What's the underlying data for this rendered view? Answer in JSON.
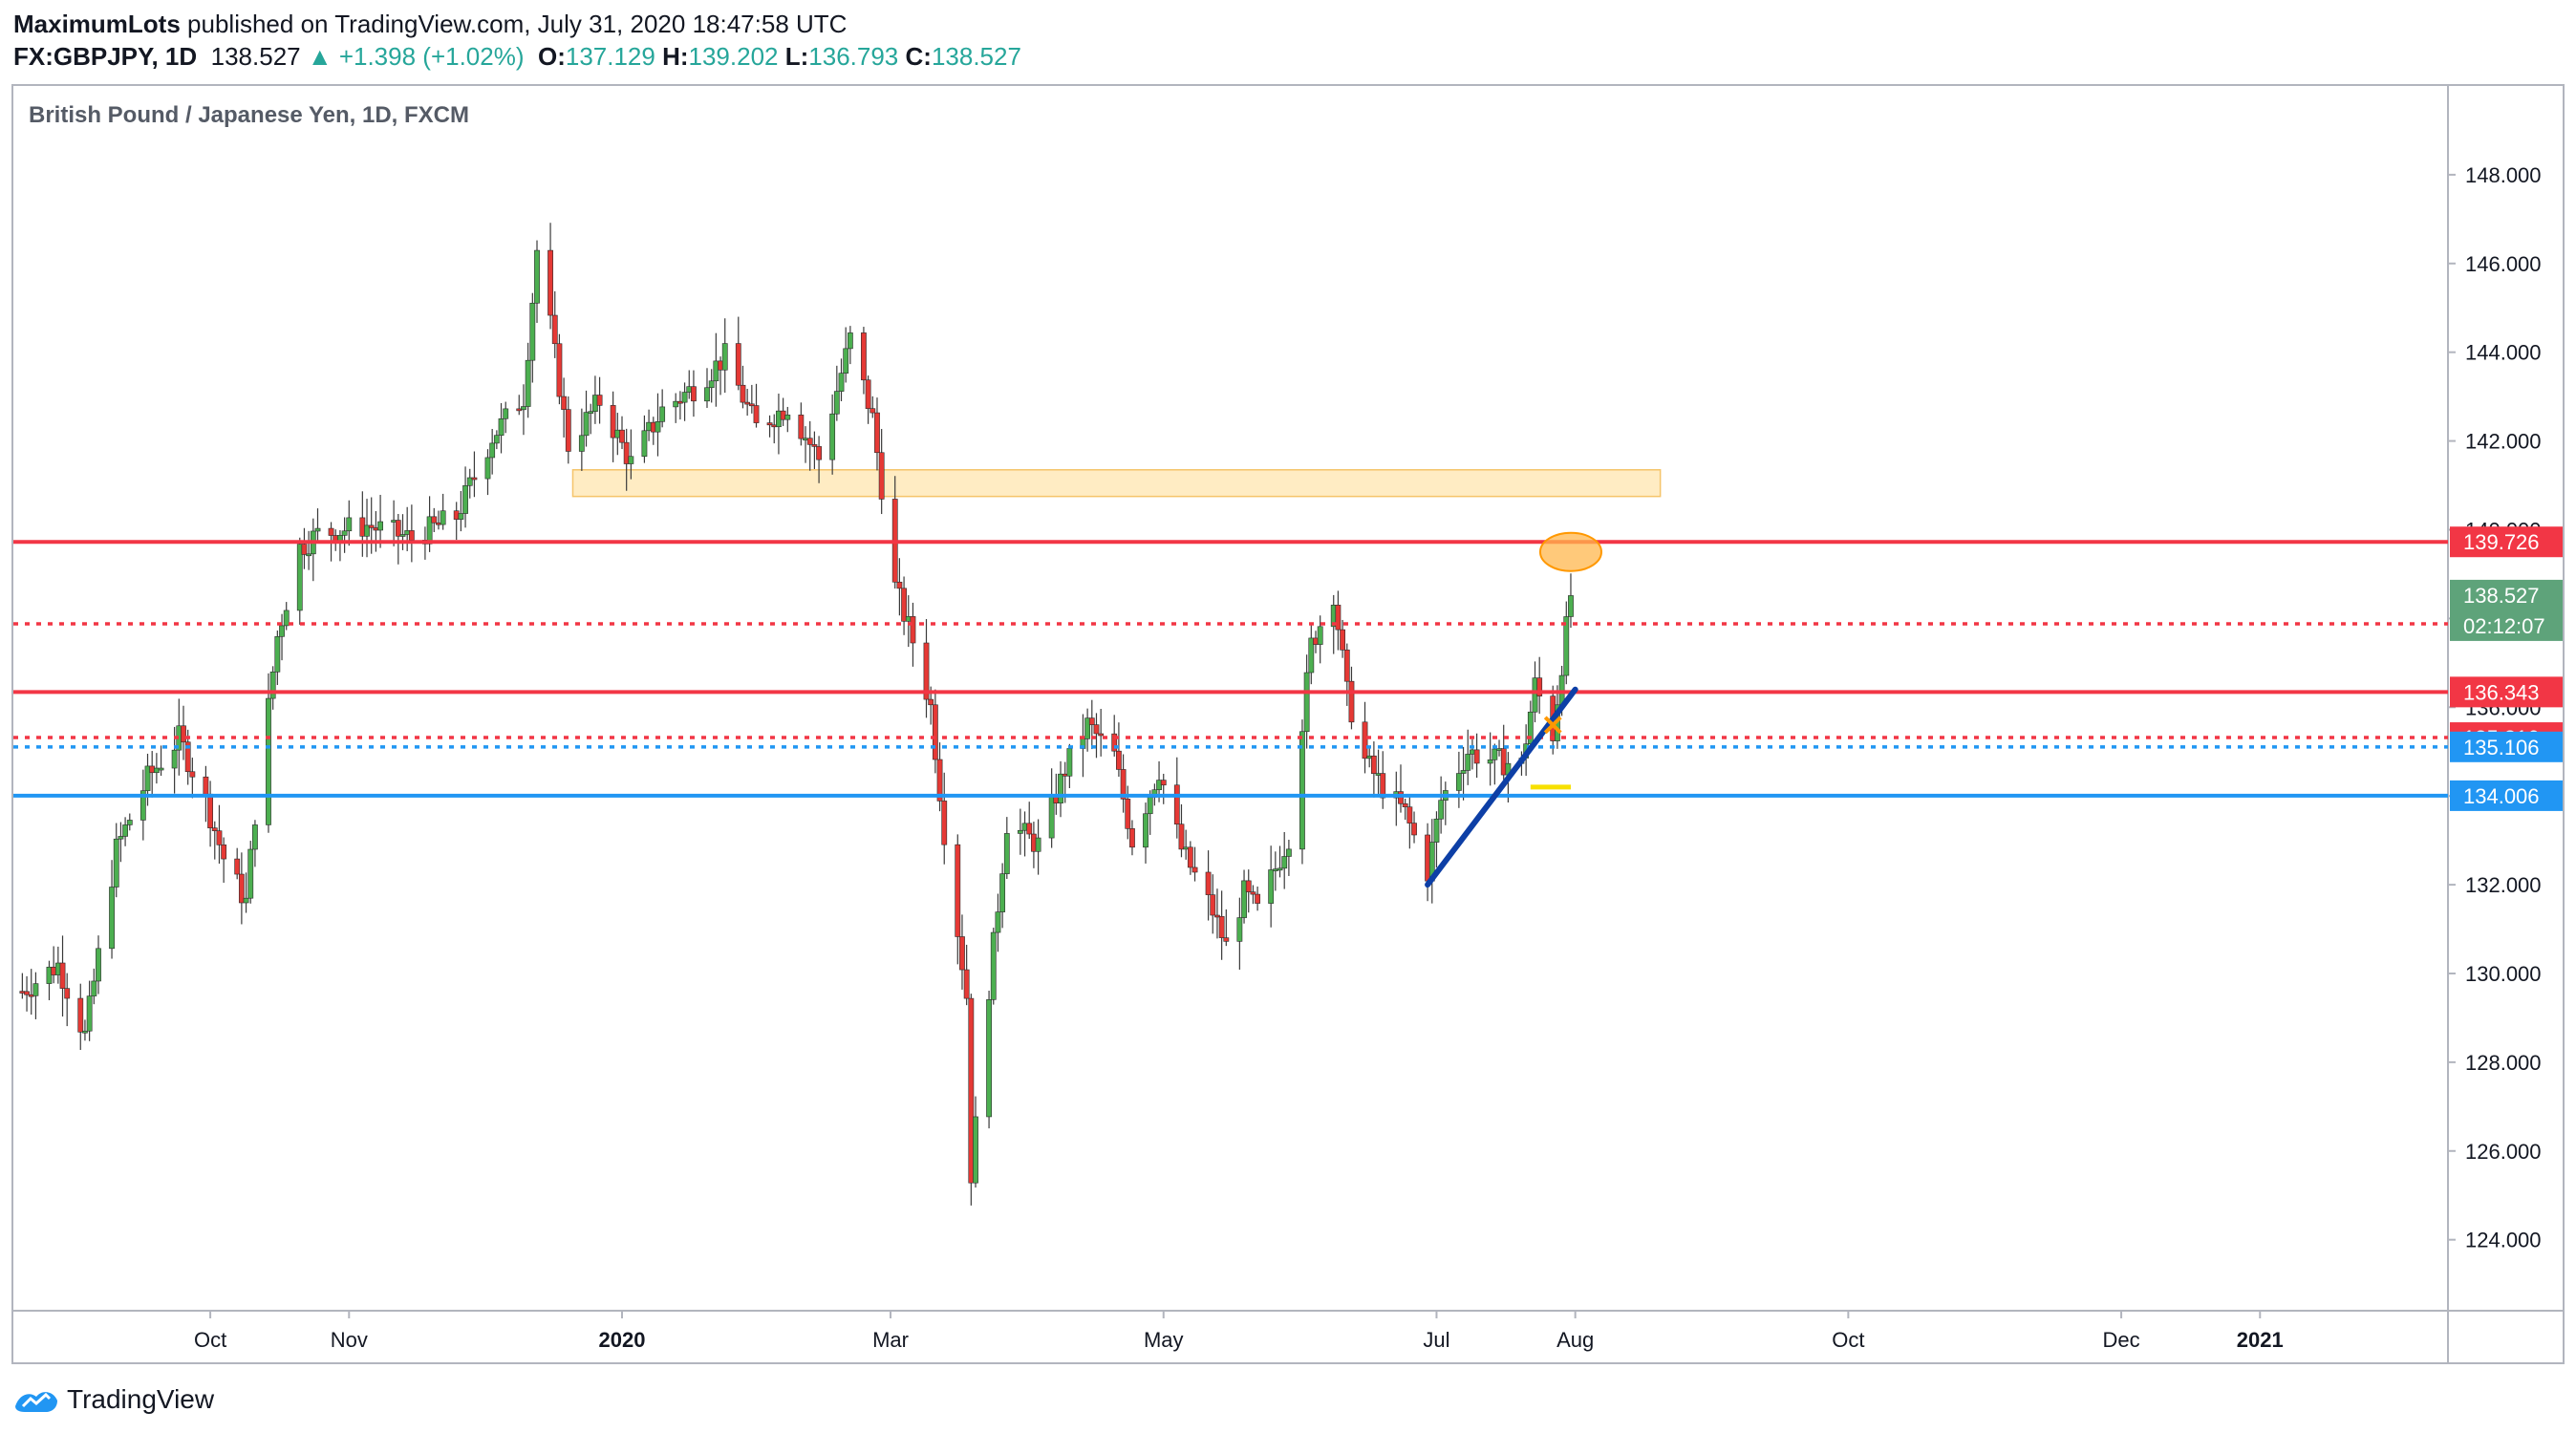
{
  "header": {
    "publisher": "MaximumLots",
    "published_text": " published on TradingView.com, July 31, 2020 18:47:58 UTC",
    "symbol": "FX:GBPJPY, 1D",
    "last": "138.527",
    "change": "+1.398 (+1.02%)",
    "open_label": "O:",
    "open": "137.129",
    "high_label": "H:",
    "high": "139.202",
    "low_label": "L:",
    "low": "136.793",
    "close_label": "C:",
    "close": "138.527"
  },
  "footer": {
    "brand": "TradingView"
  },
  "colors": {
    "up": "#26a69a",
    "down": "#ef5350",
    "candle_up_body": "#4caf50",
    "candle_down_body": "#e53935",
    "red_line": "#f23645",
    "blue_line": "#2196f3",
    "trend_line": "#0d3fa6",
    "zone": "#ffe0a3",
    "circle": "#ffb74d"
  },
  "chart_data": {
    "type": "candlestick",
    "title": "British Pound / Japanese Yen, 1D, FXCM",
    "ylim": [
      122.4,
      150.0
    ],
    "y_ticks": [
      124,
      126,
      128,
      130,
      132,
      134,
      136,
      138,
      140,
      142,
      144,
      146,
      148
    ],
    "y_tick_labels": [
      "124.000",
      "126.000",
      "128.000",
      "130.000",
      "132.000",
      "134.000",
      "136.000",
      "138.000",
      "140.000",
      "142.000",
      "144.000",
      "146.000",
      "148.000"
    ],
    "x_ticks": [
      {
        "label": "Oct",
        "date": "2019-10-01",
        "bold": false
      },
      {
        "label": "Nov",
        "date": "2019-11-01",
        "bold": false
      },
      {
        "label": "2020",
        "date": "2020-01-01",
        "bold": true
      },
      {
        "label": "Mar",
        "date": "2020-03-01",
        "bold": false
      },
      {
        "label": "May",
        "date": "2020-05-01",
        "bold": false
      },
      {
        "label": "Jul",
        "date": "2020-07-01",
        "bold": false
      },
      {
        "label": "Aug",
        "date": "2020-08-01",
        "bold": false
      },
      {
        "label": "Oct",
        "date": "2020-10-01",
        "bold": false
      },
      {
        "label": "Dec",
        "date": "2020-12-01",
        "bold": false
      },
      {
        "label": "2021",
        "date": "2021-01-01",
        "bold": true
      }
    ],
    "x_range": [
      "2019-08-18",
      "2021-02-12"
    ],
    "price_path": [
      [
        "2019-08-20",
        129.6
      ],
      [
        "2019-08-28",
        130.2
      ],
      [
        "2019-09-03",
        128.6
      ],
      [
        "2019-09-10",
        132.8
      ],
      [
        "2019-09-17",
        134.4
      ],
      [
        "2019-09-24",
        135.3
      ],
      [
        "2019-09-30",
        133.9
      ],
      [
        "2019-10-04",
        132.6
      ],
      [
        "2019-10-09",
        131.6
      ],
      [
        "2019-10-11",
        133.6
      ],
      [
        "2019-10-16",
        137.6
      ],
      [
        "2019-10-21",
        139.6
      ],
      [
        "2019-10-25",
        139.9
      ],
      [
        "2019-11-05",
        140.1
      ],
      [
        "2019-11-15",
        139.8
      ],
      [
        "2019-11-25",
        140.3
      ],
      [
        "2019-12-03",
        142.1
      ],
      [
        "2019-12-10",
        143.0
      ],
      [
        "2019-12-13",
        146.3
      ],
      [
        "2019-12-16",
        144.6
      ],
      [
        "2019-12-20",
        141.9
      ],
      [
        "2019-12-27",
        142.9
      ],
      [
        "2020-01-03",
        141.5
      ],
      [
        "2020-01-10",
        142.7
      ],
      [
        "2020-01-17",
        143.2
      ],
      [
        "2020-01-24",
        143.9
      ],
      [
        "2020-01-31",
        142.3
      ],
      [
        "2020-02-07",
        142.8
      ],
      [
        "2020-02-14",
        141.6
      ],
      [
        "2020-02-21",
        144.3
      ],
      [
        "2020-02-26",
        142.5
      ],
      [
        "2020-03-02",
        138.7
      ],
      [
        "2020-03-06",
        137.5
      ],
      [
        "2020-03-10",
        136.0
      ],
      [
        "2020-03-13",
        133.2
      ],
      [
        "2020-03-18",
        129.5
      ],
      [
        "2020-03-19",
        125.5
      ],
      [
        "2020-03-23",
        129.7
      ],
      [
        "2020-03-27",
        133.4
      ],
      [
        "2020-04-03",
        132.9
      ],
      [
        "2020-04-09",
        134.6
      ],
      [
        "2020-04-14",
        135.6
      ],
      [
        "2020-04-20",
        134.9
      ],
      [
        "2020-04-24",
        133.0
      ],
      [
        "2020-04-30",
        134.6
      ],
      [
        "2020-05-05",
        132.8
      ],
      [
        "2020-05-12",
        131.4
      ],
      [
        "2020-05-15",
        130.6
      ],
      [
        "2020-05-19",
        131.8
      ],
      [
        "2020-05-22",
        131.4
      ],
      [
        "2020-05-29",
        133.1
      ],
      [
        "2020-06-03",
        137.4
      ],
      [
        "2020-06-08",
        138.6
      ],
      [
        "2020-06-11",
        136.3
      ],
      [
        "2020-06-15",
        134.8
      ],
      [
        "2020-06-19",
        134.2
      ],
      [
        "2020-06-24",
        133.6
      ],
      [
        "2020-06-29",
        132.3
      ],
      [
        "2020-07-02",
        133.9
      ],
      [
        "2020-07-08",
        135.0
      ],
      [
        "2020-07-14",
        134.8
      ],
      [
        "2020-07-20",
        134.7
      ],
      [
        "2020-07-23",
        136.5
      ],
      [
        "2020-07-27",
        135.4
      ],
      [
        "2020-07-29",
        137.0
      ],
      [
        "2020-07-31",
        138.53
      ]
    ],
    "horizontal_lines": [
      {
        "price": 139.726,
        "style": "solid",
        "color": "#f23645",
        "label": "139.726"
      },
      {
        "price": 137.878,
        "style": "dotted",
        "color": "#f23645",
        "label": "137.878"
      },
      {
        "price": 136.343,
        "style": "solid",
        "color": "#f23645",
        "label": "136.343"
      },
      {
        "price": 135.316,
        "style": "dotted",
        "color": "#f23645",
        "label": "135.316"
      },
      {
        "price": 135.106,
        "style": "dotted",
        "color": "#2196f3",
        "label": "135.106"
      },
      {
        "price": 134.006,
        "style": "solid",
        "color": "#2196f3",
        "label": "134.006"
      }
    ],
    "last_price": {
      "label": "138.527",
      "countdown": "02:12:07",
      "color": "#5ea37a"
    },
    "zone": {
      "from": "2019-12-21",
      "to": "2020-08-20",
      "price_low": 140.75,
      "price_high": 141.35
    },
    "trend_line": {
      "from": [
        "2020-06-29",
        132.0
      ],
      "to": [
        "2020-08-01",
        136.4
      ]
    },
    "circle": {
      "date": "2020-07-31",
      "price": 139.5
    },
    "small_marks": [
      {
        "type": "yellow-dash",
        "from": "2020-07-22",
        "to": "2020-07-31",
        "price": 134.2
      },
      {
        "type": "orange-cross",
        "date": "2020-07-27",
        "price": 135.6
      }
    ],
    "x_axis_label_note": ""
  }
}
